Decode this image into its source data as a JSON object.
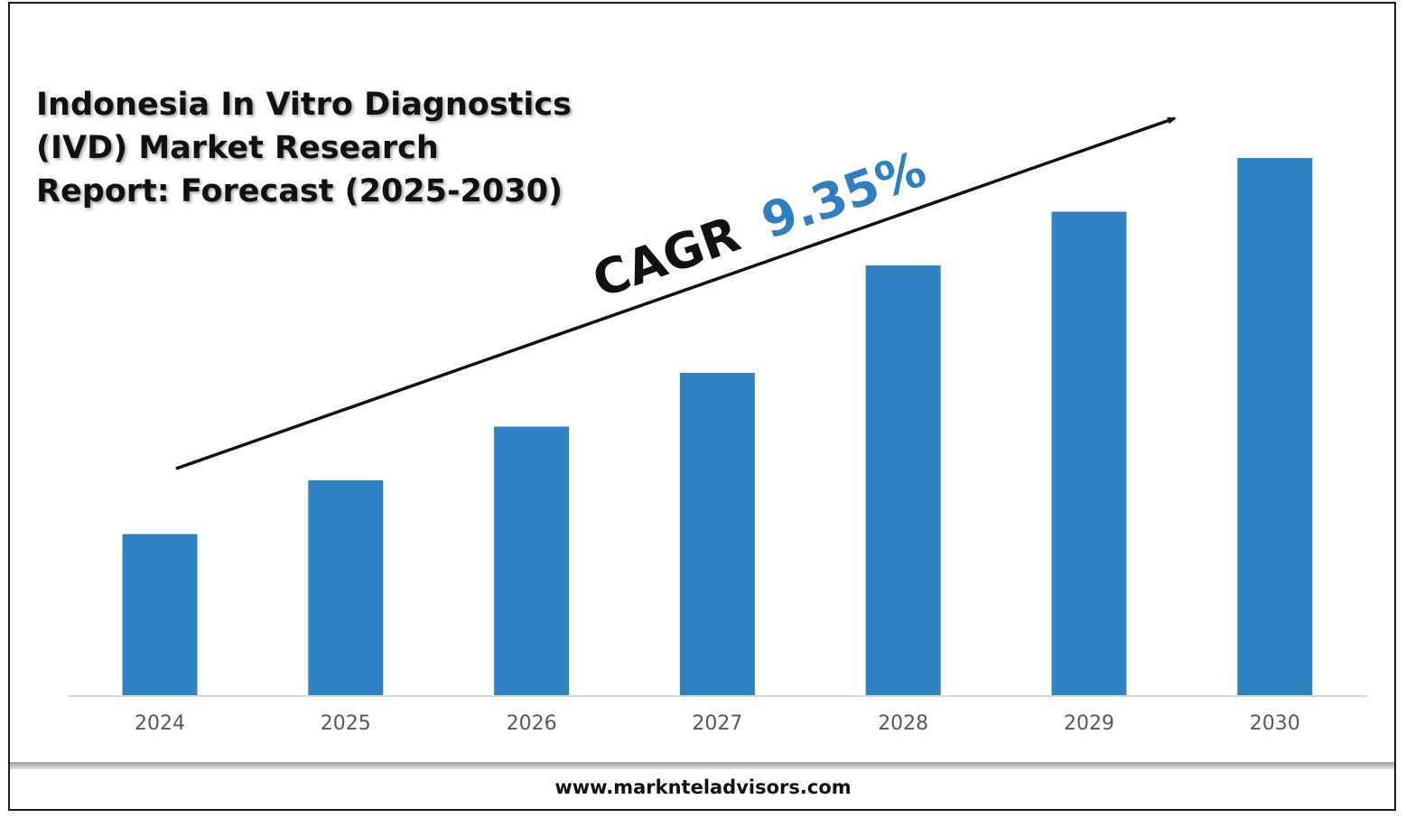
{
  "title_lines": [
    "Indonesia In Vitro Diagnostics",
    "(IVD) Market Research",
    "Report: Forecast (2025-2030)"
  ],
  "cagr": {
    "label": "CAGR",
    "value": "9.35%",
    "value_color": "#2e7fc1"
  },
  "footer": {
    "url": "www.marknteladvisors.com"
  },
  "colors": {
    "bar": "#2e83c4",
    "axis": "#d9d9d9",
    "tick_label": "#595959"
  },
  "chart_data": {
    "type": "bar",
    "title": "Indonesia In Vitro Diagnostics (IVD) Market Research Report: Forecast (2025-2030)",
    "categories": [
      "2024",
      "2025",
      "2026",
      "2027",
      "2028",
      "2029",
      "2030"
    ],
    "values": [
      30,
      40,
      50,
      60,
      80,
      90,
      100
    ],
    "value_note": "relative bar heights; no values printed on chart",
    "ylim": [
      0,
      100
    ],
    "xlabel": "",
    "ylabel": "",
    "grid": false,
    "legend": "none",
    "annotation": "CAGR 9.35%"
  }
}
